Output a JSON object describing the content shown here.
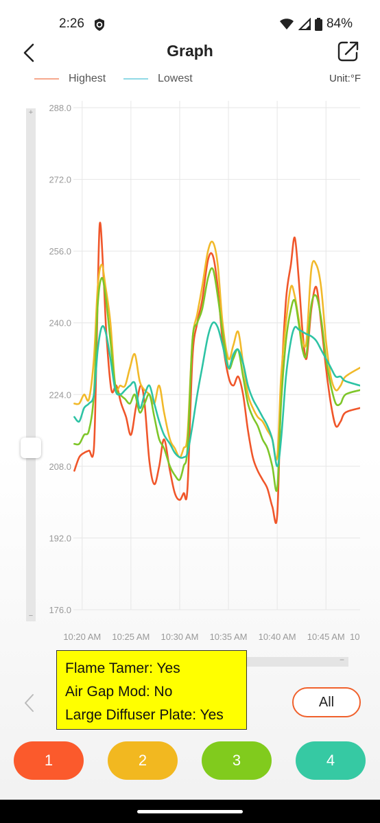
{
  "status_bar": {
    "time": "2:26",
    "battery": "84%",
    "icons": [
      "shield-icon",
      "wifi-icon",
      "signal-icon",
      "battery-icon"
    ]
  },
  "header": {
    "title": "Graph",
    "back_icon": "chevron-left-icon",
    "share_icon": "share-icon"
  },
  "legend": {
    "items": [
      {
        "label": "Highest",
        "color": "#f6a78c"
      },
      {
        "label": "Lowest",
        "color": "#8fd9e6"
      }
    ],
    "unit": "Unit:°F"
  },
  "chart_data": {
    "type": "line",
    "y_ticks": [
      "288.0",
      "272.0",
      "256.0",
      "240.0",
      "224.0",
      "208.0",
      "192.0",
      "176.0"
    ],
    "ylim": [
      176,
      288
    ],
    "x_ticks": [
      "10:20 AM",
      "10:25 AM",
      "10:30 AM",
      "10:35 AM",
      "10:40 AM",
      "10:45 AM",
      "10"
    ],
    "x_tick_minutes": [
      0,
      5,
      10,
      15,
      20,
      25,
      30
    ],
    "xlim": [
      -0.9,
      28.5
    ],
    "grid": true,
    "series": [
      {
        "color": "#f0562a",
        "points": [
          [
            -0.8,
            207
          ],
          [
            -0.3,
            210
          ],
          [
            0.2,
            211
          ],
          [
            0.7,
            211.5
          ],
          [
            1.2,
            212
          ],
          [
            1.5,
            236
          ],
          [
            1.8,
            262
          ],
          [
            2.2,
            250
          ],
          [
            2.5,
            237
          ],
          [
            3.0,
            225
          ],
          [
            3.5,
            226
          ],
          [
            4.0,
            222
          ],
          [
            4.5,
            219
          ],
          [
            5.0,
            215
          ],
          [
            5.5,
            221
          ],
          [
            6.0,
            226
          ],
          [
            6.4,
            222
          ],
          [
            6.9,
            209
          ],
          [
            7.4,
            204
          ],
          [
            7.9,
            208
          ],
          [
            8.4,
            214
          ],
          [
            9.0,
            207
          ],
          [
            9.5,
            202
          ],
          [
            10.0,
            200.5
          ],
          [
            10.4,
            202
          ],
          [
            10.8,
            203
          ],
          [
            11.3,
            232
          ],
          [
            11.8,
            240
          ],
          [
            12.3,
            245
          ],
          [
            12.9,
            254
          ],
          [
            13.4,
            255
          ],
          [
            13.9,
            248
          ],
          [
            14.4,
            236
          ],
          [
            15.0,
            228
          ],
          [
            15.5,
            226
          ],
          [
            16.0,
            228
          ],
          [
            16.5,
            224
          ],
          [
            17.0,
            216
          ],
          [
            17.5,
            210
          ],
          [
            18.0,
            207
          ],
          [
            18.5,
            205
          ],
          [
            19.0,
            203
          ],
          [
            19.5,
            199
          ],
          [
            20.0,
            197
          ],
          [
            20.4,
            225
          ],
          [
            20.9,
            245
          ],
          [
            21.4,
            253
          ],
          [
            21.8,
            259
          ],
          [
            22.2,
            250
          ],
          [
            22.6,
            238
          ],
          [
            23.0,
            232
          ],
          [
            23.5,
            243
          ],
          [
            24.0,
            248
          ],
          [
            24.5,
            240
          ],
          [
            25.0,
            230
          ],
          [
            25.5,
            222
          ],
          [
            26.0,
            217
          ],
          [
            26.5,
            218
          ],
          [
            27.0,
            220
          ],
          [
            28.5,
            221
          ]
        ]
      },
      {
        "color": "#f1b92a",
        "points": [
          [
            -0.8,
            222
          ],
          [
            -0.3,
            222
          ],
          [
            0.2,
            224
          ],
          [
            0.7,
            223
          ],
          [
            1.2,
            232
          ],
          [
            1.6,
            248
          ],
          [
            2.0,
            253
          ],
          [
            2.4,
            248
          ],
          [
            2.9,
            240
          ],
          [
            3.4,
            226
          ],
          [
            3.9,
            226
          ],
          [
            4.4,
            226
          ],
          [
            4.9,
            230
          ],
          [
            5.4,
            233
          ],
          [
            5.9,
            227
          ],
          [
            6.4,
            225
          ],
          [
            6.9,
            224
          ],
          [
            7.4,
            222
          ],
          [
            7.9,
            226
          ],
          [
            8.4,
            220
          ],
          [
            9.0,
            214
          ],
          [
            9.5,
            212
          ],
          [
            10.0,
            210
          ],
          [
            10.4,
            212
          ],
          [
            10.8,
            215
          ],
          [
            11.3,
            236
          ],
          [
            11.8,
            242
          ],
          [
            12.3,
            248
          ],
          [
            12.9,
            256
          ],
          [
            13.4,
            258
          ],
          [
            13.9,
            253
          ],
          [
            14.4,
            240
          ],
          [
            15.0,
            232
          ],
          [
            15.5,
            235
          ],
          [
            16.0,
            238
          ],
          [
            16.5,
            231
          ],
          [
            17.0,
            224
          ],
          [
            17.5,
            221
          ],
          [
            18.0,
            219
          ],
          [
            18.5,
            218
          ],
          [
            19.0,
            216
          ],
          [
            19.5,
            214
          ],
          [
            20.0,
            210
          ],
          [
            20.4,
            228
          ],
          [
            20.9,
            240
          ],
          [
            21.4,
            248
          ],
          [
            21.8,
            246
          ],
          [
            22.2,
            241
          ],
          [
            22.6,
            236
          ],
          [
            23.0,
            236
          ],
          [
            23.5,
            252
          ],
          [
            24.0,
            253
          ],
          [
            24.5,
            248
          ],
          [
            25.0,
            236
          ],
          [
            25.5,
            228
          ],
          [
            26.0,
            225
          ],
          [
            26.5,
            226
          ],
          [
            27.0,
            228
          ],
          [
            28.5,
            230
          ]
        ]
      },
      {
        "color": "#7ec629",
        "points": [
          [
            -0.8,
            213
          ],
          [
            -0.3,
            213
          ],
          [
            0.2,
            215
          ],
          [
            0.7,
            216
          ],
          [
            1.2,
            224
          ],
          [
            1.6,
            244
          ],
          [
            2.0,
            250
          ],
          [
            2.4,
            246
          ],
          [
            2.9,
            236
          ],
          [
            3.4,
            226
          ],
          [
            3.9,
            224
          ],
          [
            4.4,
            223
          ],
          [
            4.9,
            222
          ],
          [
            5.4,
            224
          ],
          [
            5.9,
            220
          ],
          [
            6.4,
            222
          ],
          [
            6.9,
            224
          ],
          [
            7.4,
            219
          ],
          [
            7.9,
            214
          ],
          [
            8.4,
            212
          ],
          [
            9.0,
            208
          ],
          [
            9.5,
            206
          ],
          [
            10.0,
            205
          ],
          [
            10.4,
            208
          ],
          [
            10.8,
            212
          ],
          [
            11.3,
            236
          ],
          [
            11.8,
            240
          ],
          [
            12.3,
            243
          ],
          [
            12.9,
            250
          ],
          [
            13.4,
            252
          ],
          [
            13.9,
            246
          ],
          [
            14.4,
            238
          ],
          [
            15.0,
            230
          ],
          [
            15.5,
            232
          ],
          [
            16.0,
            234
          ],
          [
            16.5,
            228
          ],
          [
            17.0,
            222
          ],
          [
            17.5,
            219
          ],
          [
            18.0,
            217
          ],
          [
            18.5,
            214
          ],
          [
            19.0,
            212
          ],
          [
            19.5,
            208
          ],
          [
            20.0,
            203
          ],
          [
            20.4,
            222
          ],
          [
            20.9,
            236
          ],
          [
            21.4,
            243
          ],
          [
            21.8,
            245
          ],
          [
            22.2,
            240
          ],
          [
            22.6,
            234
          ],
          [
            23.0,
            233
          ],
          [
            23.5,
            244
          ],
          [
            24.0,
            246
          ],
          [
            24.5,
            241
          ],
          [
            25.0,
            232
          ],
          [
            25.5,
            226
          ],
          [
            26.0,
            222
          ],
          [
            26.5,
            222
          ],
          [
            27.0,
            224
          ],
          [
            28.5,
            225
          ]
        ]
      },
      {
        "color": "#2dc3a4",
        "points": [
          [
            -0.8,
            219
          ],
          [
            -0.3,
            218
          ],
          [
            0.2,
            221
          ],
          [
            0.7,
            222
          ],
          [
            1.2,
            224
          ],
          [
            1.6,
            234
          ],
          [
            2.0,
            239
          ],
          [
            2.4,
            238
          ],
          [
            2.9,
            232
          ],
          [
            3.4,
            225
          ],
          [
            3.9,
            224
          ],
          [
            4.4,
            225
          ],
          [
            4.9,
            226
          ],
          [
            5.4,
            226.5
          ],
          [
            5.9,
            221
          ],
          [
            6.4,
            224
          ],
          [
            6.9,
            226
          ],
          [
            7.4,
            222
          ],
          [
            7.9,
            218
          ],
          [
            8.4,
            215
          ],
          [
            9.0,
            213
          ],
          [
            9.5,
            211
          ],
          [
            10.0,
            210
          ],
          [
            10.4,
            210
          ],
          [
            10.8,
            211
          ],
          [
            11.3,
            217
          ],
          [
            11.8,
            224
          ],
          [
            12.3,
            230
          ],
          [
            12.9,
            237
          ],
          [
            13.4,
            240
          ],
          [
            13.9,
            239
          ],
          [
            14.4,
            235
          ],
          [
            15.0,
            230
          ],
          [
            15.5,
            233
          ],
          [
            16.0,
            234
          ],
          [
            16.5,
            231
          ],
          [
            17.0,
            226
          ],
          [
            17.5,
            223
          ],
          [
            18.0,
            221
          ],
          [
            18.5,
            219
          ],
          [
            19.0,
            217
          ],
          [
            19.5,
            214
          ],
          [
            20.0,
            208
          ],
          [
            20.4,
            214
          ],
          [
            20.9,
            228
          ],
          [
            21.4,
            236
          ],
          [
            21.8,
            239
          ],
          [
            22.2,
            238.5
          ],
          [
            22.6,
            238
          ],
          [
            23.0,
            237.5
          ],
          [
            23.5,
            237
          ],
          [
            24.0,
            236
          ],
          [
            24.5,
            234
          ],
          [
            25.0,
            232
          ],
          [
            25.5,
            230
          ],
          [
            26.0,
            228
          ],
          [
            26.5,
            228
          ],
          [
            27.0,
            227
          ],
          [
            28.5,
            226
          ]
        ]
      }
    ]
  },
  "note": {
    "lines": [
      "Flame Tamer: Yes",
      "Air Gap Mod: No",
      "Large Diffuser Plate: Yes"
    ]
  },
  "controls": {
    "all_label": "All",
    "prev_icon": "chevron-left-icon",
    "zoom_plus": "+",
    "zoom_minus": "−",
    "scroll_minus": "−"
  },
  "probes": [
    {
      "label": "1",
      "color": "#fb5a2c"
    },
    {
      "label": "2",
      "color": "#f2b820"
    },
    {
      "label": "3",
      "color": "#81cb1d"
    },
    {
      "label": "4",
      "color": "#36c9a3"
    }
  ]
}
